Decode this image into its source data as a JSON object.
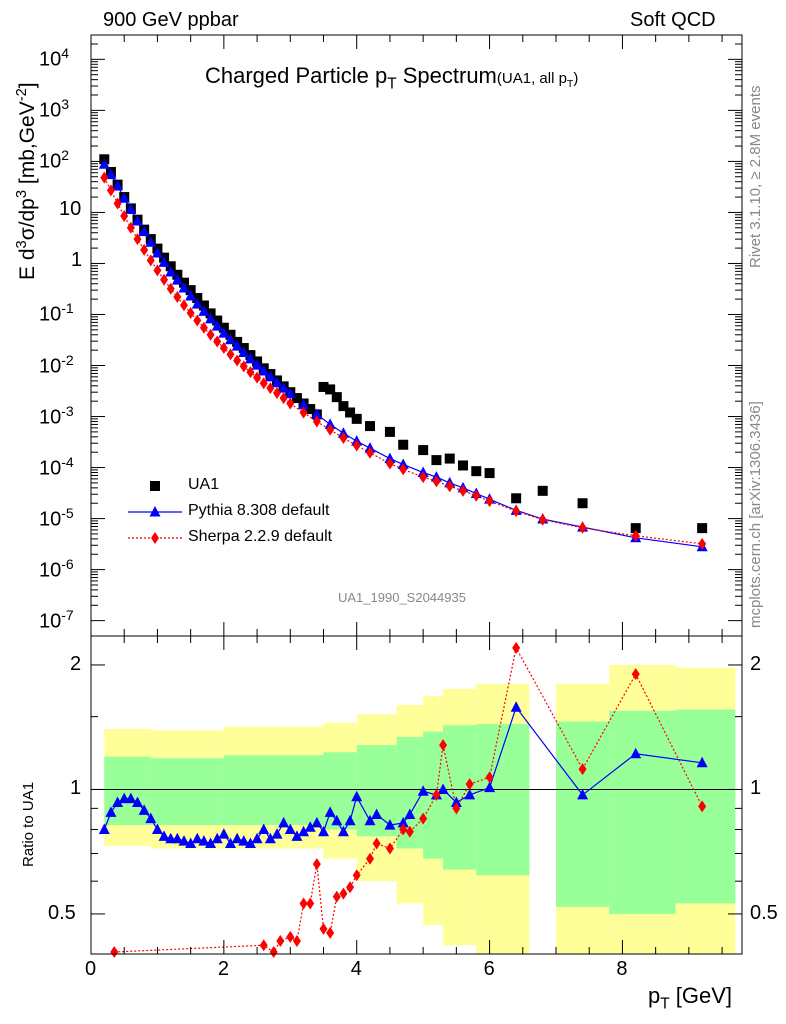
{
  "header": {
    "left": "900 GeV ppbar",
    "right": "Soft QCD"
  },
  "side_text": {
    "rivet": "Rivet 3.1.10, ≥ 2.8M events",
    "mcplots": "mcplots.cern.ch [arXiv:1306.3436]"
  },
  "chart_data": [
    {
      "type": "scatter",
      "title": "Charged Particle p_T Spectrum",
      "subtitle": "(UA1, all p_T)",
      "analysis_id": "UA1_1990_S2044935",
      "xlabel": "p_T [GeV]",
      "ylabel": "E d^3σ/dp^3 [mb,GeV^-2]",
      "yscale": "log",
      "xlim": [
        0,
        9.8
      ],
      "ylim": [
        5e-08,
        30000
      ],
      "legend_position": "bottom-left",
      "y_ticks": [
        "10^-7",
        "10^-6",
        "10^-5",
        "10^-4",
        "10^-3",
        "10^-2",
        "10^-1",
        "1",
        "10",
        "10^2",
        "10^3",
        "10^4"
      ],
      "series": [
        {
          "name": "UA1",
          "color": "#000000",
          "marker": "square",
          "x": [
            0.2,
            0.3,
            0.4,
            0.5,
            0.6,
            0.7,
            0.8,
            0.9,
            1.0,
            1.1,
            1.2,
            1.3,
            1.4,
            1.5,
            1.6,
            1.7,
            1.8,
            1.9,
            2.0,
            2.1,
            2.2,
            2.3,
            2.4,
            2.5,
            2.6,
            2.7,
            2.8,
            2.9,
            3.0,
            3.1,
            3.2,
            3.3,
            3.4,
            3.5,
            3.6,
            3.7,
            3.8,
            3.9,
            4.0,
            4.2,
            4.5,
            4.7,
            5.0,
            5.2,
            5.4,
            5.6,
            5.8,
            6.0,
            6.4,
            6.8,
            7.4,
            8.2,
            9.2
          ],
          "y": [
            110,
            62,
            35,
            20,
            12,
            7.2,
            4.6,
            3.0,
            1.95,
            1.3,
            0.88,
            0.6,
            0.42,
            0.3,
            0.21,
            0.15,
            0.105,
            0.076,
            0.055,
            0.04,
            0.029,
            0.022,
            0.016,
            0.012,
            0.0088,
            0.0068,
            0.0051,
            0.0039,
            0.003,
            0.0023,
            0.0018,
            0.0014,
            0.0011,
            0.0038,
            0.0034,
            0.0024,
            0.0016,
            0.0012,
            0.0009,
            0.00065,
            0.0005,
            0.00028,
            0.00022,
            0.00014,
            0.00015,
            0.00011,
            8.5e-05,
            7.8e-05,
            2.5e-05,
            3.5e-05,
            2e-05,
            6.5e-06,
            6.5e-06
          ]
        },
        {
          "name": "Pythia 8.308 default",
          "color": "#0000ff",
          "marker": "triangle",
          "line": "solid",
          "x": [
            0.2,
            0.3,
            0.4,
            0.5,
            0.6,
            0.7,
            0.8,
            0.9,
            1.0,
            1.1,
            1.2,
            1.3,
            1.4,
            1.5,
            1.6,
            1.7,
            1.8,
            1.9,
            2.0,
            2.1,
            2.2,
            2.3,
            2.4,
            2.5,
            2.6,
            2.7,
            2.8,
            2.9,
            3.0,
            3.2,
            3.4,
            3.6,
            3.8,
            4.0,
            4.2,
            4.5,
            4.7,
            5.0,
            5.2,
            5.4,
            5.6,
            5.8,
            6.0,
            6.4,
            6.8,
            7.4,
            8.2,
            9.2
          ],
          "y": [
            88,
            55,
            33,
            19,
            11.4,
            6.8,
            4.2,
            2.6,
            1.6,
            1.05,
            0.68,
            0.47,
            0.33,
            0.23,
            0.16,
            0.115,
            0.082,
            0.059,
            0.043,
            0.032,
            0.024,
            0.018,
            0.0135,
            0.0102,
            0.0078,
            0.006,
            0.0046,
            0.0036,
            0.0028,
            0.0017,
            0.0011,
            0.0007,
            0.00047,
            0.00033,
            0.00024,
            0.00015,
            0.000115,
            8e-05,
            6.5e-05,
            5e-05,
            4e-05,
            3.1e-05,
            2.4e-05,
            1.45e-05,
            9.8e-06,
            6.8e-06,
            4.2e-06,
            2.8e-06
          ]
        },
        {
          "name": "Sherpa 2.2.9 default",
          "color": "#ff0000",
          "marker": "diamond",
          "line": "dotted",
          "x": [
            0.2,
            0.3,
            0.4,
            0.5,
            0.6,
            0.7,
            0.8,
            0.9,
            1.0,
            1.1,
            1.2,
            1.3,
            1.4,
            1.5,
            1.6,
            1.7,
            1.8,
            1.9,
            2.0,
            2.1,
            2.2,
            2.3,
            2.4,
            2.5,
            2.6,
            2.7,
            2.8,
            2.9,
            3.0,
            3.2,
            3.4,
            3.6,
            3.8,
            4.0,
            4.2,
            4.5,
            4.7,
            5.0,
            5.2,
            5.4,
            5.6,
            5.8,
            6.0,
            6.4,
            6.8,
            7.4,
            8.2,
            9.2
          ],
          "y": [
            48,
            27,
            15,
            8.5,
            5.0,
            3.0,
            1.85,
            1.15,
            0.73,
            0.48,
            0.32,
            0.22,
            0.152,
            0.107,
            0.076,
            0.055,
            0.04,
            0.0295,
            0.022,
            0.0165,
            0.0125,
            0.0096,
            0.0074,
            0.0058,
            0.0045,
            0.0036,
            0.0029,
            0.0023,
            0.0018,
            0.00119,
            0.0008,
            0.00055,
            0.00038,
            0.00027,
            0.000195,
            0.00012,
            9.2e-05,
            6.5e-05,
            5.4e-05,
            4.3e-05,
            3.5e-05,
            2.8e-05,
            2.2e-05,
            1.4e-05,
            9.5e-06,
            6.6e-06,
            4.6e-06,
            3.2e-06
          ]
        }
      ]
    },
    {
      "type": "scatter",
      "ylabel": "Ratio to UA1",
      "xlabel": "p_T [GeV]",
      "yscale": "log",
      "xlim": [
        0,
        9.8
      ],
      "ylim": [
        0.4,
        2.35
      ],
      "x_ticks": [
        "0",
        "2",
        "4",
        "6",
        "8"
      ],
      "y_ticks": [
        "0.5",
        "1",
        "2"
      ],
      "reference_line": 1,
      "bands": [
        {
          "x_from": 0.2,
          "x_to": 6.6,
          "yellow_low": [
            0.72,
            0.72,
            0.71,
            0.7,
            0.69,
            0.67,
            0.6,
            0.5,
            0.42,
            0.4
          ],
          "green": "1-sigma",
          "yellow": "2-sigma"
        }
      ],
      "series": [
        {
          "name": "Pythia 8.308 default",
          "color": "#0000ff",
          "marker": "triangle",
          "x": [
            0.2,
            0.3,
            0.4,
            0.5,
            0.6,
            0.7,
            0.8,
            0.9,
            1.0,
            1.1,
            1.2,
            1.3,
            1.4,
            1.5,
            1.6,
            1.7,
            1.8,
            1.9,
            2.0,
            2.1,
            2.2,
            2.3,
            2.4,
            2.5,
            2.6,
            2.7,
            2.8,
            2.9,
            3.0,
            3.1,
            3.2,
            3.3,
            3.4,
            3.5,
            3.6,
            3.7,
            3.8,
            3.9,
            4.0,
            4.2,
            4.3,
            4.5,
            4.7,
            4.8,
            5.0,
            5.2,
            5.3,
            5.5,
            5.7,
            6.0,
            6.4,
            7.4,
            8.2,
            9.2
          ],
          "y": [
            0.8,
            0.88,
            0.93,
            0.95,
            0.95,
            0.93,
            0.89,
            0.85,
            0.8,
            0.77,
            0.76,
            0.76,
            0.75,
            0.74,
            0.76,
            0.75,
            0.74,
            0.76,
            0.78,
            0.74,
            0.76,
            0.75,
            0.74,
            0.76,
            0.8,
            0.76,
            0.78,
            0.83,
            0.8,
            0.77,
            0.79,
            0.81,
            0.83,
            0.79,
            0.88,
            0.84,
            0.79,
            0.84,
            0.96,
            0.84,
            0.87,
            0.82,
            0.83,
            0.87,
            0.99,
            0.97,
            1.0,
            0.93,
            0.97,
            1.01,
            1.58,
            0.97,
            1.22,
            1.16
          ],
          "y_plotted": [
            0.8,
            0.88,
            0.93,
            0.95,
            0.95,
            0.93,
            0.89,
            0.85,
            0.8,
            0.77,
            0.76,
            0.76,
            0.75,
            0.74,
            0.76,
            0.75,
            0.74,
            0.76,
            0.78,
            0.74,
            0.76,
            0.75,
            0.74,
            0.76,
            0.8,
            0.76,
            0.78,
            0.83,
            0.8,
            0.77,
            0.79,
            0.81,
            0.83,
            0.79,
            0.88,
            0.84,
            0.79,
            0.84,
            0.96,
            0.84,
            0.87,
            0.82,
            0.83,
            0.87,
            0.99,
            0.97,
            1.0,
            0.93,
            0.97,
            1.01,
            1.58,
            0.97,
            1.22,
            1.16
          ]
        },
        {
          "name": "Sherpa 2.2.9 default",
          "color": "#ff0000",
          "marker": "diamond",
          "x": [
            0.35,
            2.6,
            2.75,
            2.85,
            3.0,
            3.1,
            3.2,
            3.3,
            3.4,
            3.5,
            3.6,
            3.7,
            3.8,
            3.9,
            4.0,
            4.2,
            4.3,
            4.5,
            4.7,
            4.8,
            5.0,
            5.2,
            5.3,
            5.5,
            5.7,
            6.0,
            6.4,
            7.4,
            8.2,
            9.2
          ],
          "y": [
            0.4,
            0.42,
            0.4,
            0.43,
            0.44,
            0.43,
            0.53,
            0.53,
            0.66,
            0.46,
            0.45,
            0.55,
            0.56,
            0.58,
            0.62,
            0.68,
            0.74,
            0.72,
            0.8,
            0.79,
            0.85,
            0.97,
            1.28,
            0.9,
            1.03,
            1.07,
            2.2,
            1.12,
            1.9,
            0.91
          ]
        }
      ]
    }
  ]
}
